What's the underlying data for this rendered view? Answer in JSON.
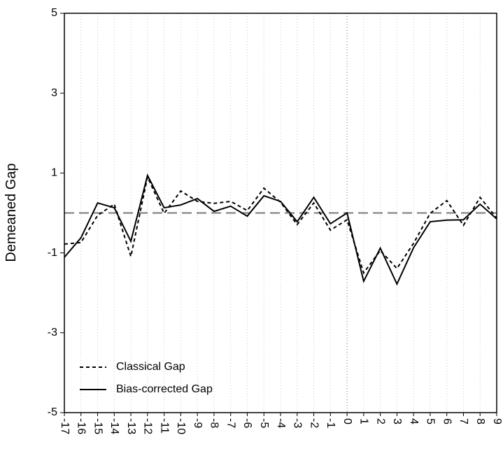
{
  "chart_data": {
    "type": "line",
    "y_label": "Demeaned Gap",
    "x": [
      -17,
      -16,
      -15,
      -14,
      -13,
      -12,
      -11,
      -10,
      -9,
      -8,
      -7,
      -6,
      -5,
      -4,
      -3,
      -2,
      -1,
      0,
      1,
      2,
      3,
      4,
      5,
      6,
      7,
      8,
      9
    ],
    "series": [
      {
        "name": "Classical Gap",
        "color": "#000000",
        "dash": true,
        "values": [
          -0.78,
          -0.74,
          -0.06,
          0.22,
          -1.09,
          0.9,
          -0.01,
          0.55,
          0.29,
          0.24,
          0.29,
          0.06,
          0.62,
          0.27,
          -0.29,
          0.25,
          -0.43,
          -0.17,
          -1.5,
          -0.94,
          -1.39,
          -0.76,
          -0.01,
          0.31,
          -0.31,
          0.39,
          -0.13
        ]
      },
      {
        "name": "Bias-corrected Gap",
        "color": "#000000",
        "dash": false,
        "values": [
          -1.11,
          -0.62,
          0.25,
          0.13,
          -0.71,
          0.94,
          0.13,
          0.2,
          0.36,
          0.04,
          0.17,
          -0.08,
          0.43,
          0.29,
          -0.22,
          0.39,
          -0.27,
          0,
          -1.71,
          -0.88,
          -1.78,
          -0.87,
          -0.22,
          -0.18,
          -0.17,
          0.22,
          -0.15
        ]
      }
    ],
    "xlim": [
      -17,
      9
    ],
    "xticks": [
      -17,
      -16,
      -15,
      -14,
      -13,
      -12,
      -11,
      -10,
      -9,
      -8,
      -7,
      -6,
      -5,
      -4,
      -3,
      -2,
      -1,
      0,
      1,
      2,
      3,
      4,
      5,
      6,
      7,
      8,
      9
    ],
    "ylim": [
      -5,
      5
    ],
    "yticks": [
      -5,
      -3,
      -1,
      1,
      3,
      5
    ],
    "hline": 0,
    "vline": 0,
    "grid": true,
    "legend": "bottom-left"
  }
}
